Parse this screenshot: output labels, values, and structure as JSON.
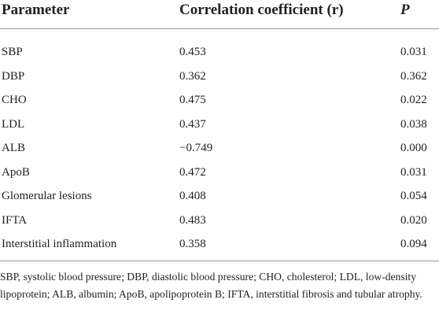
{
  "table": {
    "header": [
      "Parameter",
      "Correlation coefficient (r)",
      "P"
    ],
    "rows": [
      [
        "SBP",
        "0.453",
        "0.031"
      ],
      [
        "DBP",
        "0.362",
        "0.362"
      ],
      [
        "CHO",
        "0.475",
        "0.022"
      ],
      [
        "LDL",
        "0.437",
        "0.038"
      ],
      [
        "ALB",
        "−0.749",
        "0.000"
      ],
      [
        "ApoB",
        "0.472",
        "0.031"
      ],
      [
        "Glomerular lesions",
        "0.408",
        "0.054"
      ],
      [
        "IFTA",
        "0.483",
        "0.020"
      ],
      [
        "Interstitial inflammation",
        "0.358",
        "0.094"
      ]
    ]
  },
  "footnote": "SBP, systolic blood pressure; DBP, diastolic blood pressure; CHO, cholesterol; LDL, low-density lipoprotein; ALB, albumin; ApoB, apolipoprotein B; IFTA, interstitial fibrosis and tubular atrophy."
}
